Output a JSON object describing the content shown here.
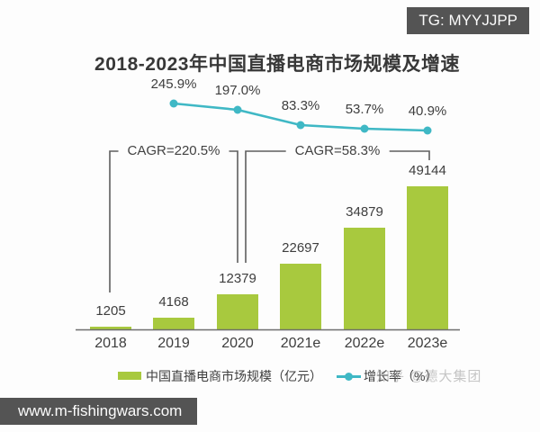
{
  "badges": {
    "telegram": "TG: MYYJJPP",
    "website": "www.m-fishingwars.com"
  },
  "watermark": "知乎 @德大集团",
  "chart_data": {
    "type": "bar",
    "title": "2018-2023年中国直播电商市场规模及增速",
    "categories": [
      "2018",
      "2019",
      "2020",
      "2021e",
      "2022e",
      "2023e"
    ],
    "series": [
      {
        "name": "中国直播电商市场规模（亿元）",
        "type": "bar",
        "values": [
          1205,
          4168,
          12379,
          22697,
          34879,
          49144
        ],
        "color": "#a8c93e"
      },
      {
        "name": "增长率（%）",
        "type": "line",
        "values": [
          null,
          245.9,
          197.0,
          83.3,
          53.7,
          40.9
        ],
        "labels": [
          "",
          "245.9%",
          "197.0%",
          "83.3%",
          "53.7%",
          "40.9%"
        ],
        "color": "#3fb8c5"
      }
    ],
    "annotations": [
      {
        "label": "CAGR=220.5%",
        "from": "2018",
        "to": "2020"
      },
      {
        "label": "CAGR=58.3%",
        "from": "2020",
        "to": "2023e"
      }
    ],
    "legend": [
      "中国直播电商市场规模（亿元）",
      "增长率（%）"
    ],
    "legend_position": "bottom",
    "grid": false,
    "ylim": [
      0,
      52000
    ]
  }
}
